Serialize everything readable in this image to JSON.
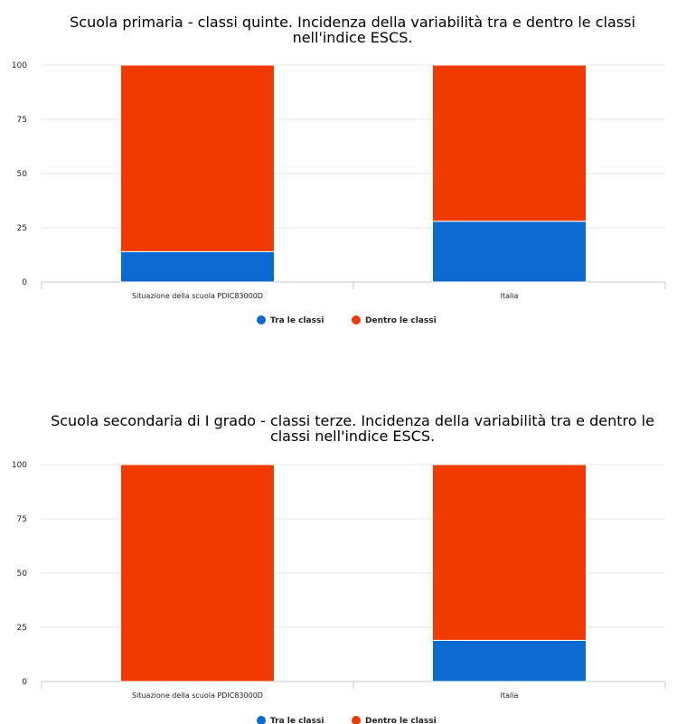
{
  "colors": {
    "tra": "#0a6ad0",
    "dentro": "#f03a00",
    "grid": "#e6e6ea",
    "axis": "#c0c8d8"
  },
  "chart_data": [
    {
      "type": "bar",
      "stacked": true,
      "title": "Scuola primaria - classi quinte. Incidenza della variabilità tra e dentro le classi nell'indice ESCS.",
      "categories": [
        "Situazione della scuola PDIC83000D",
        "Italia"
      ],
      "series": [
        {
          "name": "Tra le classi",
          "values": [
            14,
            28
          ]
        },
        {
          "name": "Dentro le classi",
          "values": [
            86,
            72
          ]
        }
      ],
      "ylim": [
        0,
        100
      ],
      "yticks": [
        0,
        25,
        50,
        75,
        100
      ],
      "grid": true,
      "legend": "bottom-center"
    },
    {
      "type": "bar",
      "stacked": true,
      "title": "Scuola secondaria di I grado - classi terze. Incidenza della variabilità tra e dentro le classi nell'indice ESCS.",
      "categories": [
        "Situazione della scuola PDIC83000D",
        "Italia"
      ],
      "series": [
        {
          "name": "Tra le classi",
          "values": [
            0,
            19
          ]
        },
        {
          "name": "Dentro le classi",
          "values": [
            100,
            81
          ]
        }
      ],
      "ylim": [
        0,
        100
      ],
      "yticks": [
        0,
        25,
        50,
        75,
        100
      ],
      "grid": true,
      "legend": "bottom-center"
    }
  ]
}
